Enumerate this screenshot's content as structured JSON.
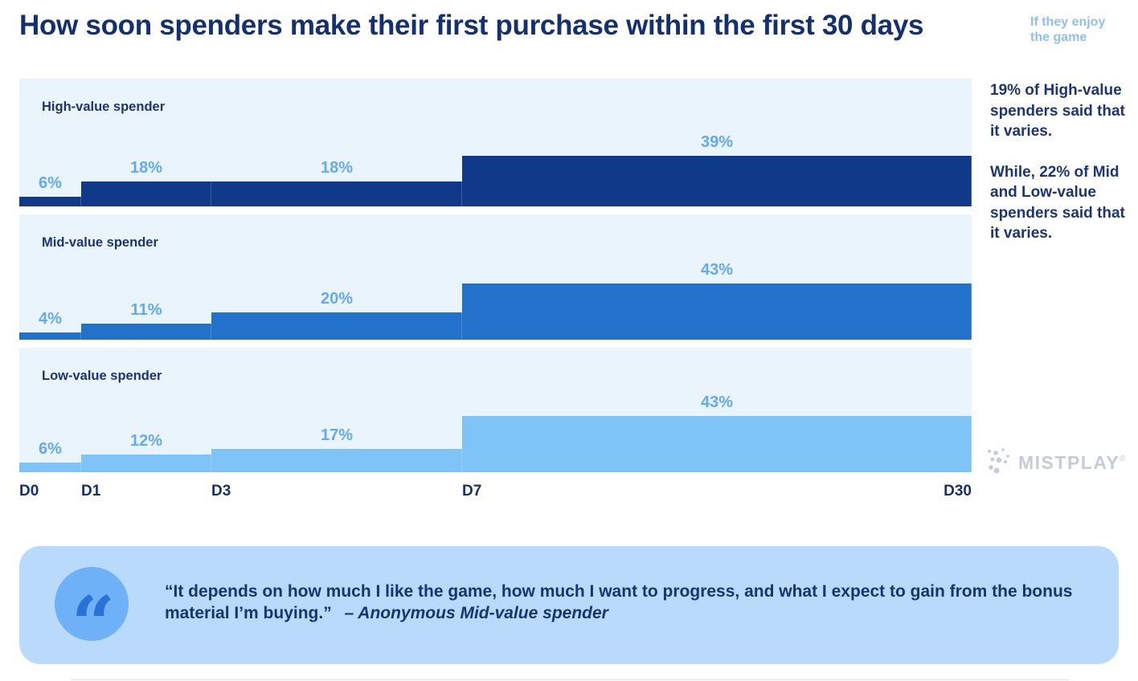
{
  "title": "How soon spenders make their first purchase within the first 30 days",
  "top_note": "If they enjoy the game",
  "colors": {
    "title_navy": "#14306e",
    "panel_bg": "#eaf4fd",
    "high_bar": "#11398a",
    "mid_bar": "#2272cc",
    "low_bar": "#7fc4f7",
    "value_label_blue": "#64a9f2",
    "top_note_blue": "#93bdf1",
    "annotation_navy": "#1b3576",
    "quote_card_bg": "#b9dafa",
    "quote_circle": "#6fb1f7",
    "quote_glyph": "#2a72d8",
    "logo_gray": "#c6cbdc"
  },
  "chart_data": {
    "type": "area",
    "subtype": "step",
    "title": "How soon spenders make their first purchase within the first 30 days",
    "x_labels": [
      "D0",
      "D1",
      "D3",
      "D7",
      "D30"
    ],
    "unit": "%",
    "series": [
      {
        "name": "High-value spender",
        "values": [
          6,
          18,
          18,
          39
        ],
        "color": "#11398a"
      },
      {
        "name": "Mid-value spender",
        "values": [
          4,
          11,
          20,
          43
        ],
        "color": "#2272cc"
      },
      {
        "name": "Low-value spender",
        "values": [
          6,
          12,
          17,
          43
        ],
        "color": "#7fc4f7"
      }
    ],
    "value_labels": [
      [
        "6%",
        "18%",
        "18%",
        "39%"
      ],
      [
        "4%",
        "11%",
        "20%",
        "43%"
      ],
      [
        "6%",
        "12%",
        "17%",
        "43%"
      ]
    ],
    "legend_position": "in-panel-top-left",
    "grid": false
  },
  "annotation": {
    "para1": "19% of High-value spenders said that it varies.",
    "para2": "While, 22% of Mid and Low-value spenders said that it varies."
  },
  "logo": {
    "name": "MISTPLAY",
    "registered": "®"
  },
  "quote": {
    "glyph": "“",
    "text": "“It depends on how much I like the game, how much I want to progress, and what I expect to gain from the bonus material I’m buying.”",
    "attribution": "– Anonymous Mid-value spender"
  }
}
